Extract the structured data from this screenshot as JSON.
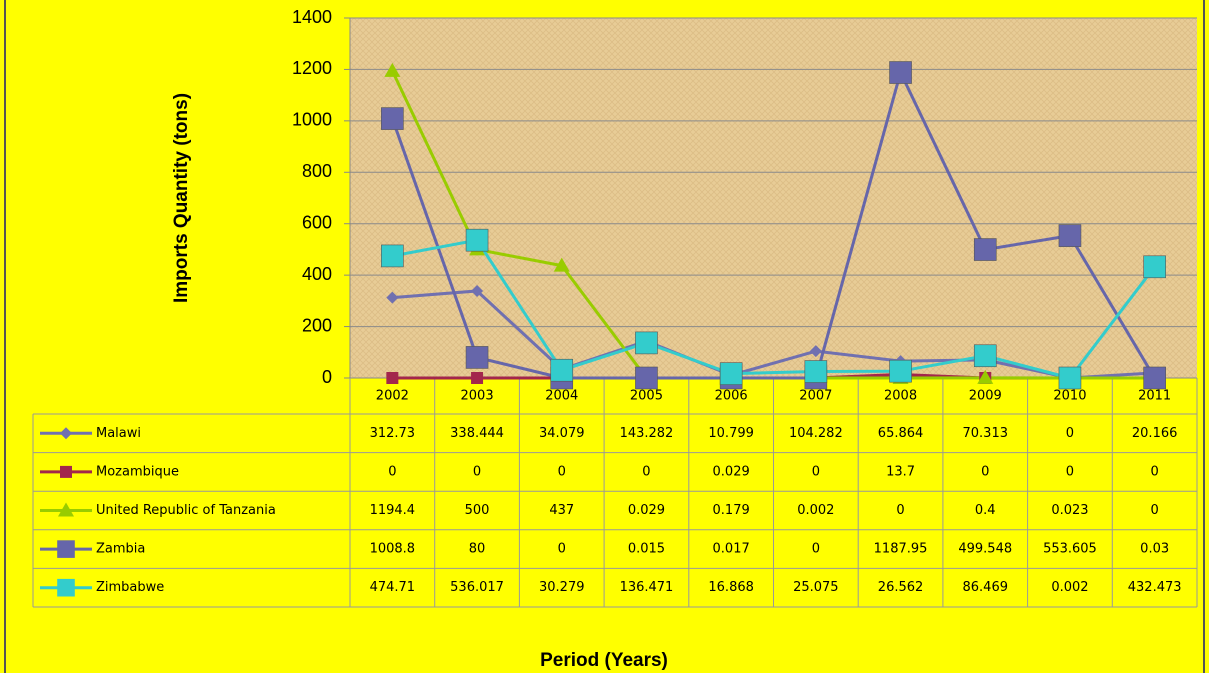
{
  "chart_data": {
    "type": "line",
    "y_label": "Imports Quantity (tons)",
    "x_label": "Period (Years)",
    "categories": [
      "2002",
      "2003",
      "2004",
      "2005",
      "2006",
      "2007",
      "2008",
      "2009",
      "2010",
      "2011"
    ],
    "ylim": [
      0,
      1400
    ],
    "yticks": [
      0,
      200,
      400,
      600,
      800,
      1000,
      1200,
      1400
    ],
    "grid": true,
    "series": [
      {
        "name": "Malawi",
        "color": "#7070b0",
        "marker": "diamond",
        "values": [
          312.73,
          338.444,
          34.079,
          143.282,
          10.799,
          104.282,
          65.864,
          70.313,
          0,
          20.166
        ]
      },
      {
        "name": "Mozambique",
        "color": "#a3264c",
        "marker": "square",
        "values": [
          0,
          0,
          0,
          0,
          0.029,
          0,
          13.7,
          0,
          0,
          0
        ]
      },
      {
        "name": "United Republic of Tanzania",
        "color": "#99cc00",
        "marker": "triangle",
        "values": [
          1194.4,
          500,
          437,
          0.029,
          0.179,
          0.002,
          0,
          0.4,
          0.023,
          0
        ]
      },
      {
        "name": "Zambia",
        "color": "#6666aa",
        "marker": "bigsquare",
        "values": [
          1008.8,
          80,
          0,
          0.015,
          0.017,
          0,
          1187.95,
          499.548,
          553.605,
          0.03
        ]
      },
      {
        "name": "Zimbabwe",
        "color": "#33cccc",
        "marker": "bigsquare",
        "values": [
          474.71,
          536.017,
          30.279,
          136.471,
          16.868,
          25.075,
          26.562,
          86.469,
          0.002,
          432.473
        ]
      }
    ]
  }
}
